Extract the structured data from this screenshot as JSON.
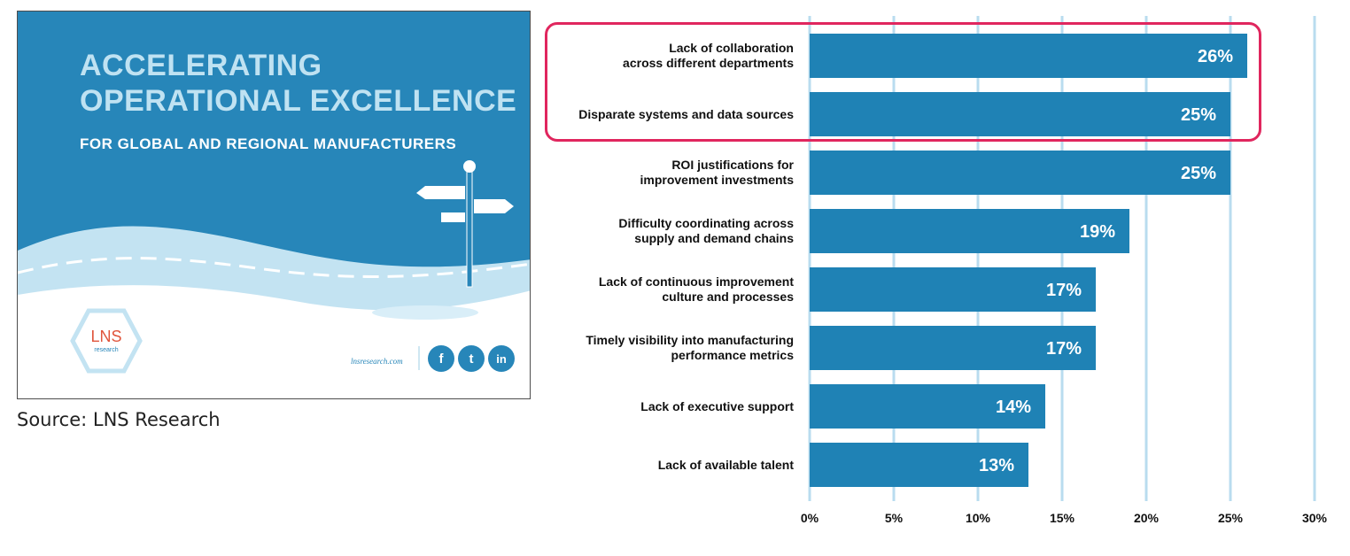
{
  "cover": {
    "title_line1": "ACCELERATING",
    "title_line2": "OPERATIONAL EXCELLENCE",
    "subtitle": "FOR GLOBAL AND REGIONAL MANUFACTURERS",
    "logo_text": "LNS",
    "logo_subtext": "research",
    "url": "lnsresearch.com",
    "social": [
      {
        "icon": "facebook-icon",
        "glyph": "f"
      },
      {
        "icon": "twitter-icon",
        "glyph": "t"
      },
      {
        "icon": "linkedin-icon",
        "glyph": "in"
      }
    ]
  },
  "source_caption": "Source: LNS Research",
  "colors": {
    "bar": "#1f82b5",
    "gridline": "#b9dcef",
    "highlight": "#e0265e",
    "cover_bg": "#2786b9"
  },
  "chart_data": {
    "type": "bar",
    "orientation": "horizontal",
    "categories": [
      [
        "Lack of collaboration",
        "across different departments"
      ],
      [
        "Disparate systems and data sources"
      ],
      [
        "ROI justifications for",
        "improvement investments"
      ],
      [
        "Difficulty coordinating across",
        "supply and demand chains"
      ],
      [
        "Lack of continuous improvement",
        "culture and processes"
      ],
      [
        "Timely visibility into manufacturing",
        "performance metrics"
      ],
      [
        "Lack of executive support"
      ],
      [
        "Lack of available talent"
      ]
    ],
    "values": [
      26,
      25,
      25,
      19,
      17,
      17,
      14,
      13
    ],
    "value_labels": [
      "26%",
      "25%",
      "25%",
      "19%",
      "17%",
      "17%",
      "14%",
      "13%"
    ],
    "xlim": [
      0,
      30
    ],
    "xticks": [
      0,
      5,
      10,
      15,
      20,
      25,
      30
    ],
    "xtick_labels": [
      "0%",
      "5%",
      "10%",
      "15%",
      "20%",
      "25%",
      "30%"
    ],
    "grid": true,
    "highlighted_categories": [
      0,
      1
    ]
  }
}
